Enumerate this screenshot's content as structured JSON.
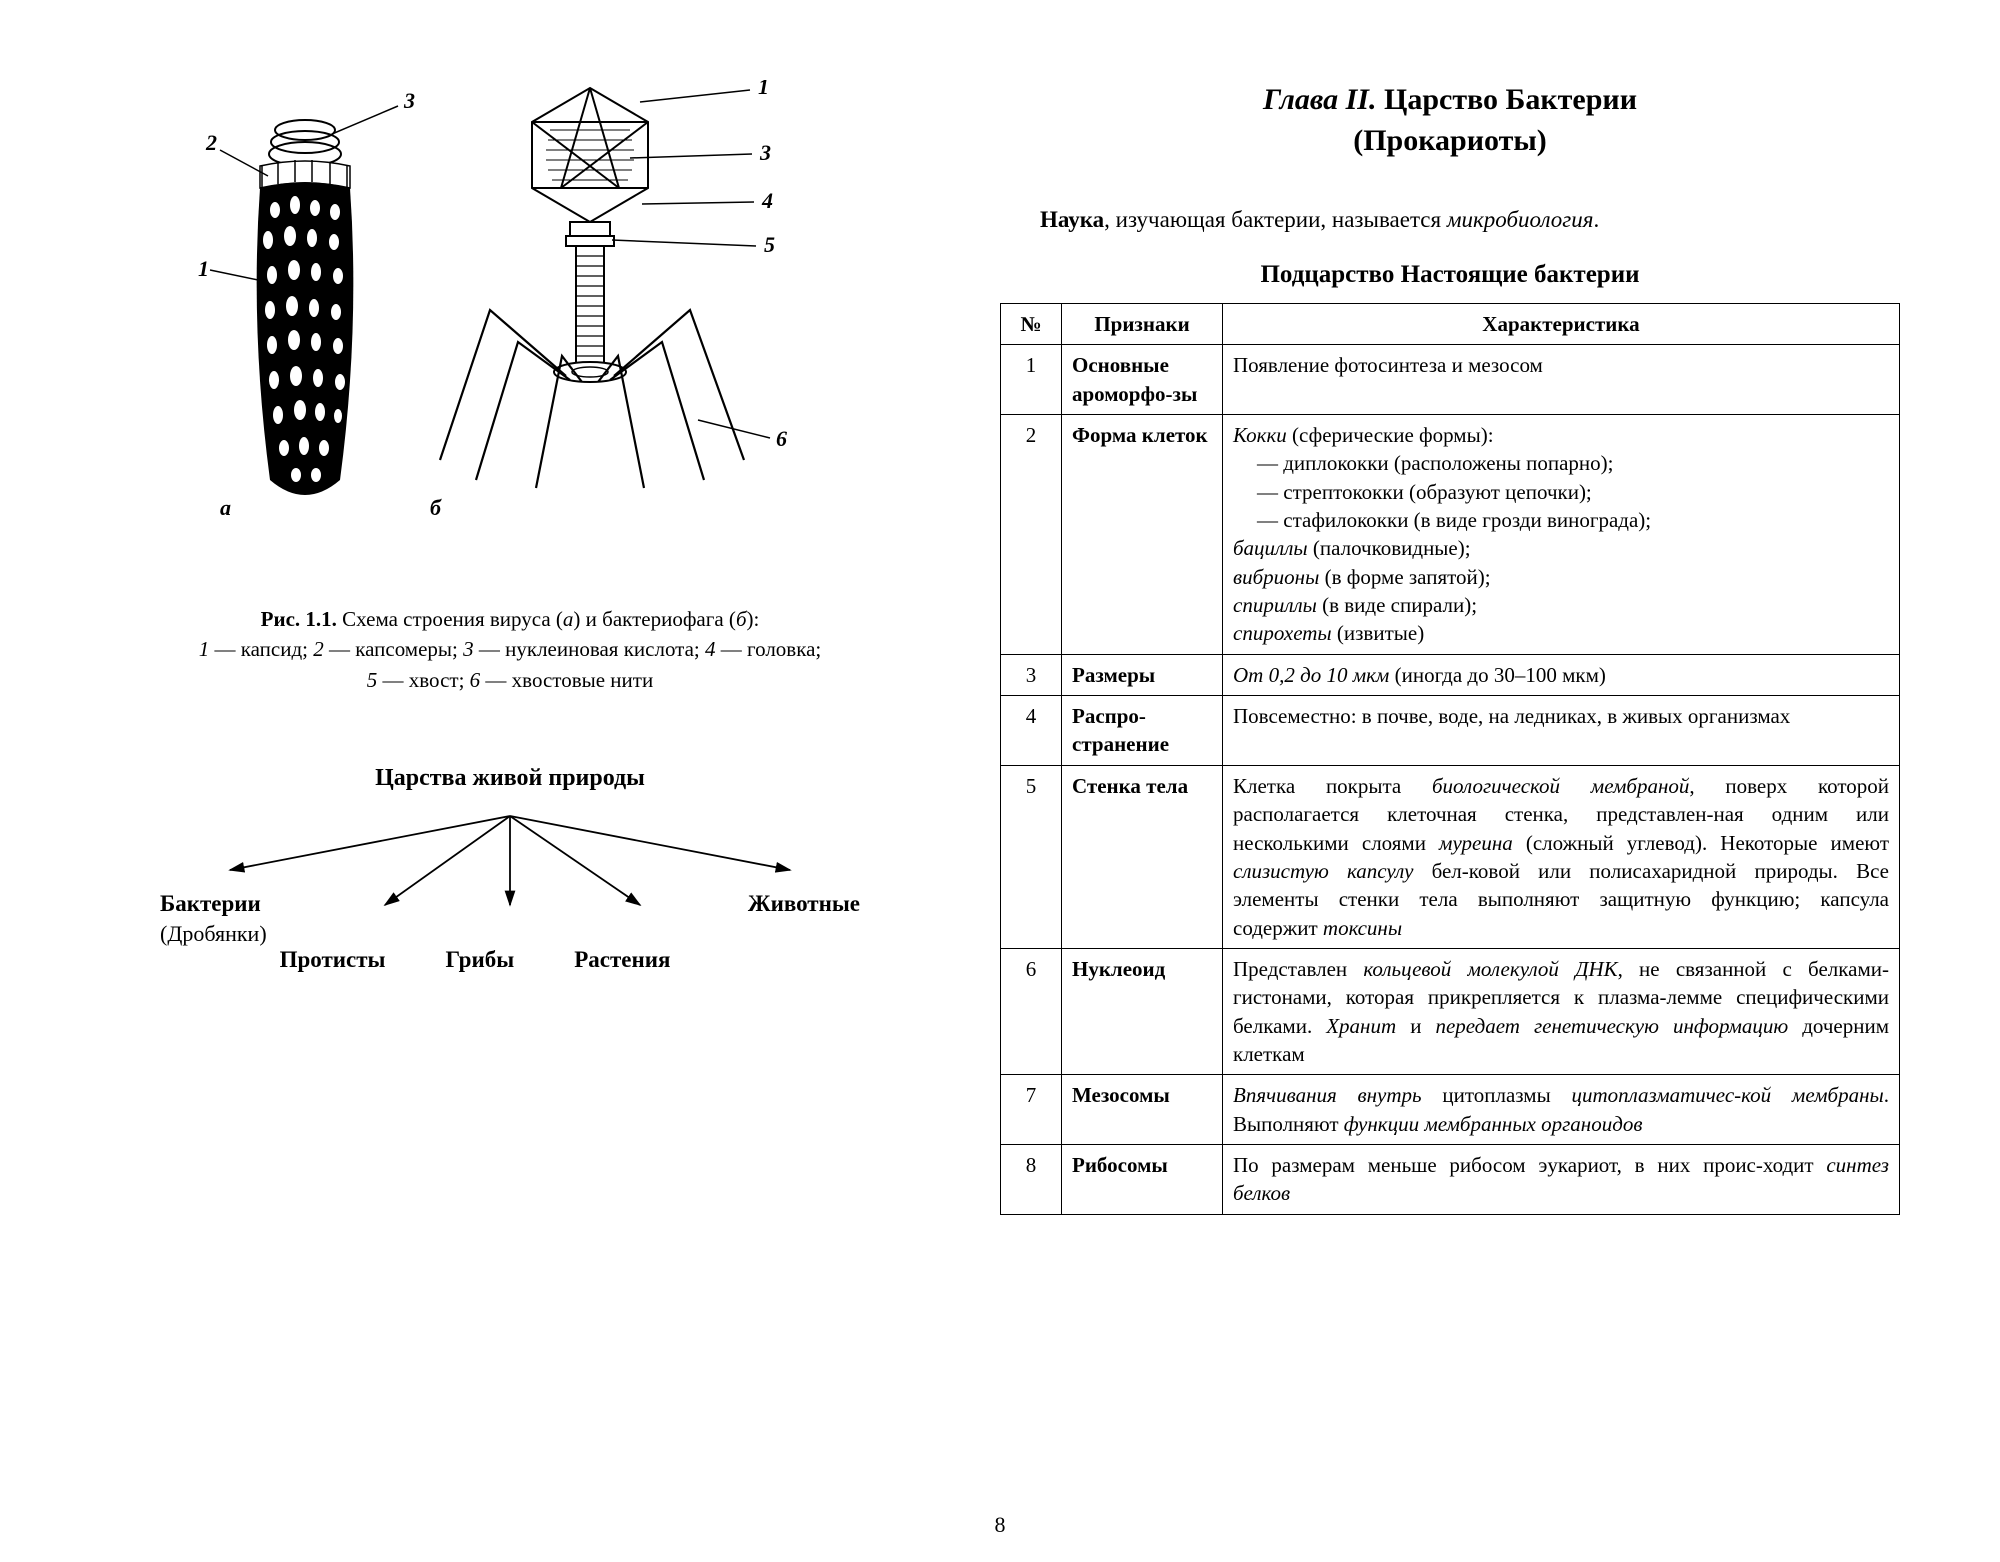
{
  "colors": {
    "background": "#ffffff",
    "text": "#000000",
    "line": "#000000",
    "tableBorder": "#000000"
  },
  "pageNumber": "8",
  "figure": {
    "letters": {
      "a": "а",
      "b": "б"
    },
    "labels": {
      "1": "1",
      "2": "2",
      "3": "3",
      "4": "4",
      "5": "5",
      "6": "6"
    },
    "caption": {
      "title_bold": "Рис. 1.1.",
      "title_rest": " Схема строения вируса (",
      "a_italic": "а",
      "mid1": ") и бактериофага (",
      "b_italic": "б",
      "mid2": "):",
      "line2_pre": "",
      "legend": "1 — капсид; 2 — капсомеры; 3 — нуклеиновая кислота; 4 — головка;",
      "legend_parts": {
        "l1": " — капсид; ",
        "l2": " — капсомеры; ",
        "l3": " — нуклеиновая кислота; ",
        "l4": " — головка;",
        "l5": " — хвост; ",
        "l6": " — хвостовые нити"
      }
    }
  },
  "kingdoms": {
    "title": "Царства живой природы",
    "items": {
      "bacteria": "Бактерии",
      "bacteria_sub": "(Дробянки)",
      "protists": "Протисты",
      "fungi": "Грибы",
      "plants": "Растения",
      "animals": "Животные"
    },
    "arrow": {
      "stroke": "#000000",
      "width": 1.6
    }
  },
  "right": {
    "chapter_num": "Глава II.",
    "chapter_title_rest": " Царство Бактерии",
    "chapter_title_line2": "(Прокариоты)",
    "intro_bold": "Наука",
    "intro_rest1": ", изучающая бактерии, называется ",
    "intro_italic": "микробиология",
    "intro_rest2": ".",
    "subtitle": "Подцарство Настоящие бактерии"
  },
  "table": {
    "headers": {
      "num": "№",
      "feature": "Признаки",
      "char": "Характеристика"
    },
    "rows": [
      {
        "num": "1",
        "feature": "Основные ароморфо-зы",
        "char_html": "Появление фотосинтеза и мезосом"
      },
      {
        "num": "2",
        "feature": "Форма клеток",
        "char_html": "<i>Кокки</i> (сферические формы):<br><span class=\"indented\">— диплококки (расположены попарно);<br>— стрептококки (образуют цепочки);<br>— стафилококки (в виде грозди винограда);</span><i>бациллы</i> (палочковидные);<br><i>вибрионы</i> (в форме запятой);<br><i>спириллы</i> (в виде спирали);<br><i>спирохеты</i> (извитые)"
      },
      {
        "num": "3",
        "feature": "Размеры",
        "char_html": "<i>От 0,2 до 10 мкм</i> (иногда до 30–100 мкм)"
      },
      {
        "num": "4",
        "feature": "Распро-странение",
        "char_html": "Повсеместно: в почве, воде, на ледниках, в живых организмах"
      },
      {
        "num": "5",
        "feature": "Стенка тела",
        "char_html": "Клетка покрыта <i>биологической мембраной</i>, поверх которой располагается клеточная стенка, представлен-ная одним или несколькими слоями <i>муреина</i> (сложный углевод). Некоторые имеют <i>слизистую капсулу</i> бел-ковой или полисахаридной природы. Все элементы стенки тела выполняют защитную функцию; капсула содержит <i>токсины</i>"
      },
      {
        "num": "6",
        "feature": "Нуклеоид",
        "char_html": "Представлен <i>кольцевой молекулой ДНК</i>, не связанной с белками-гистонами, которая прикрепляется к плазма-лемме специфическими белками. <i>Хранит</i> и <i>передает генетическую информацию</i> дочерним клеткам"
      },
      {
        "num": "7",
        "feature": "Мезосомы",
        "char_html": "<i>Впячивания внутрь</i> цитоплазмы <i>цитоплазматичес-кой мембраны</i>. Выполняют <i>функции мембранных органоидов</i>"
      },
      {
        "num": "8",
        "feature": "Рибосомы",
        "char_html": "По размерам меньше рибосом эукариот, в них проис-ходит <i>синтез белков</i>"
      }
    ]
  }
}
